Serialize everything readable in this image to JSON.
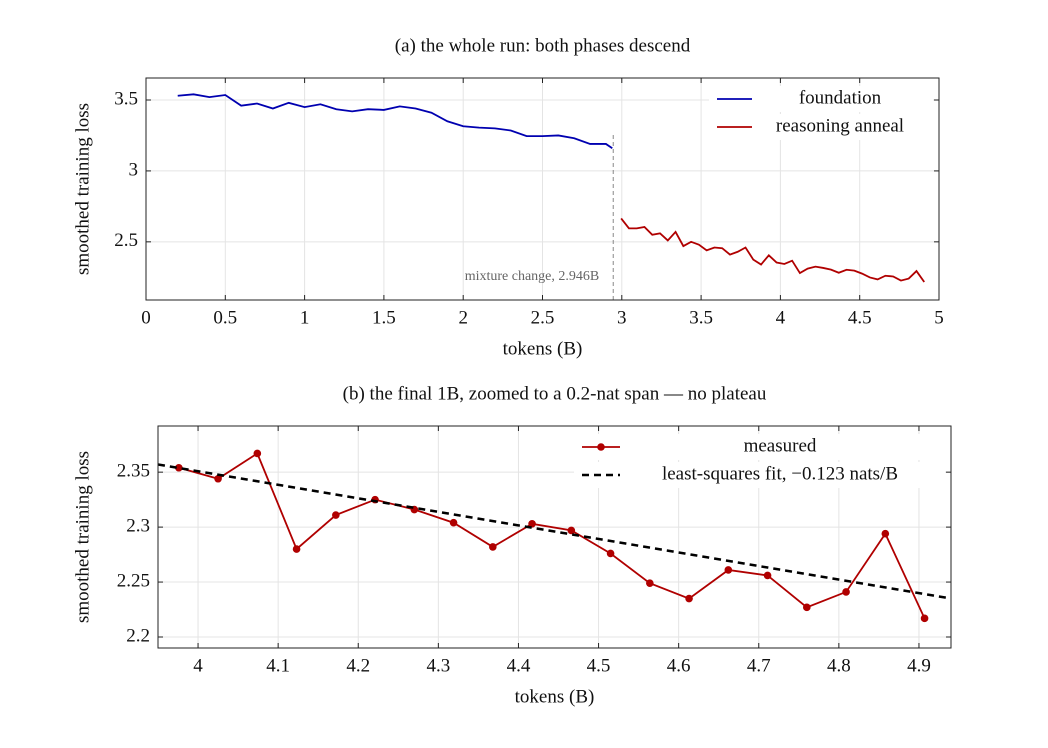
{
  "chart_data": [
    {
      "type": "line",
      "title": "(a) the whole run: both phases descend",
      "xlabel": "tokens (B)",
      "ylabel": "smoothed training loss",
      "xlim": [
        0,
        5
      ],
      "ylim": [
        2.09,
        3.655
      ],
      "xticks": [
        0,
        0.5,
        1,
        1.5,
        2,
        2.5,
        3,
        3.5,
        4,
        4.5,
        5
      ],
      "yticks": [
        2.5,
        3,
        3.5
      ],
      "grid": true,
      "legend": "upper right",
      "vline": {
        "x": 2.946,
        "label": "mixture change, 2.946B"
      },
      "series": [
        {
          "name": "foundation",
          "color": "#0000b0",
          "x": [
            0.2,
            0.3,
            0.4,
            0.5,
            0.6,
            0.7,
            0.8,
            0.9,
            1.0,
            1.1,
            1.2,
            1.3,
            1.4,
            1.5,
            1.6,
            1.7,
            1.8,
            1.9,
            2.0,
            2.1,
            2.2,
            2.3,
            2.4,
            2.5,
            2.6,
            2.7,
            2.8,
            2.9,
            2.94
          ],
          "values": [
            3.53,
            3.54,
            3.52,
            3.535,
            3.46,
            3.475,
            3.44,
            3.48,
            3.45,
            3.47,
            3.435,
            3.42,
            3.435,
            3.43,
            3.455,
            3.44,
            3.41,
            3.35,
            3.315,
            3.305,
            3.3,
            3.285,
            3.245,
            3.245,
            3.25,
            3.23,
            3.19,
            3.19,
            3.16
          ]
        },
        {
          "name": "reasoning anneal",
          "color": "#b00000",
          "x": [
            2.996,
            3.045,
            3.094,
            3.143,
            3.192,
            3.241,
            3.29,
            3.339,
            3.388,
            3.437,
            3.486,
            3.535,
            3.584,
            3.633,
            3.682,
            3.731,
            3.78,
            3.829,
            3.878,
            3.927,
            3.976,
            4.025,
            4.074,
            4.123,
            4.172,
            4.221,
            4.27,
            4.319,
            4.368,
            4.417,
            4.466,
            4.515,
            4.564,
            4.613,
            4.662,
            4.711,
            4.76,
            4.809,
            4.858,
            4.907
          ],
          "values": [
            2.665,
            2.595,
            2.595,
            2.605,
            2.55,
            2.56,
            2.51,
            2.57,
            2.47,
            2.5,
            2.48,
            2.44,
            2.46,
            2.455,
            2.41,
            2.43,
            2.46,
            2.375,
            2.34,
            2.405,
            2.354,
            2.344,
            2.367,
            2.28,
            2.311,
            2.325,
            2.316,
            2.304,
            2.282,
            2.303,
            2.297,
            2.276,
            2.249,
            2.235,
            2.261,
            2.256,
            2.227,
            2.241,
            2.294,
            2.217
          ]
        }
      ]
    },
    {
      "type": "line",
      "title": "(b) the final 1B, zoomed to a 0.2-nat span — no plateau",
      "xlabel": "tokens (B)",
      "ylabel": "smoothed training loss",
      "xlim": [
        3.95,
        4.94
      ],
      "ylim": [
        2.19,
        2.392
      ],
      "xticks": [
        4,
        4.1,
        4.2,
        4.3,
        4.4,
        4.5,
        4.6,
        4.7,
        4.8,
        4.9
      ],
      "yticks": [
        2.2,
        2.25,
        2.3,
        2.35
      ],
      "grid": true,
      "legend": "upper right",
      "series": [
        {
          "name": "measured",
          "color": "#b00000",
          "marker": "circle",
          "x": [
            3.976,
            4.025,
            4.074,
            4.123,
            4.172,
            4.221,
            4.27,
            4.319,
            4.368,
            4.417,
            4.466,
            4.515,
            4.564,
            4.613,
            4.662,
            4.711,
            4.76,
            4.809,
            4.858,
            4.907
          ],
          "values": [
            2.354,
            2.344,
            2.367,
            2.28,
            2.311,
            2.325,
            2.316,
            2.304,
            2.282,
            2.303,
            2.297,
            2.276,
            2.249,
            2.235,
            2.261,
            2.256,
            2.227,
            2.241,
            2.294,
            2.217
          ]
        },
        {
          "name": "least-squares fit, −0.123 nats/B",
          "color": "#000000",
          "dashed": true,
          "x": [
            3.95,
            4.94
          ],
          "values": [
            2.357,
            2.235
          ]
        }
      ]
    }
  ]
}
